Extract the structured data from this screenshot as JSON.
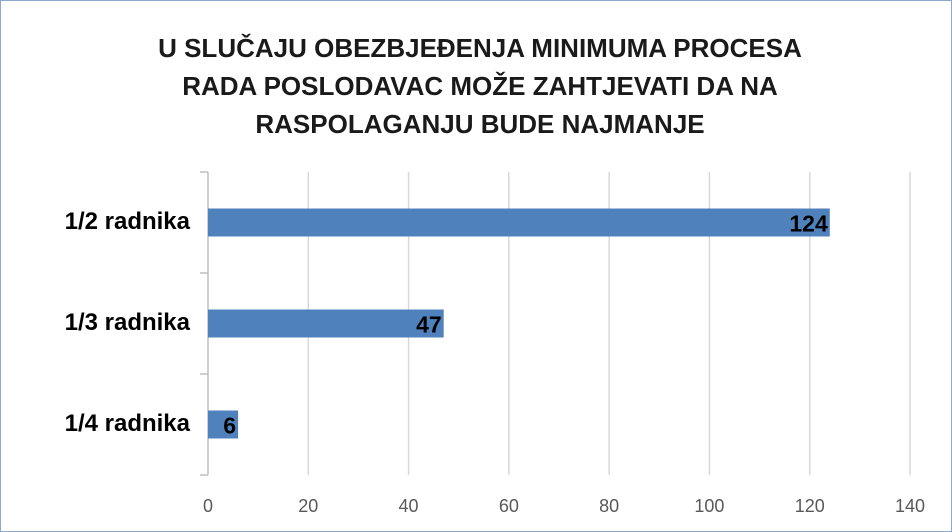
{
  "chart_data": {
    "type": "hbar",
    "title": [
      "U SLUČAJU OBEZBJEĐENJA MINIMUMA PROCESA",
      "RADA POSLODAVAC MOŽE ZAHTJEVATI DA NA",
      "RASPOLAGANJU BUDE NAJMANJE"
    ],
    "categories": [
      "1/2 radnika",
      "1/3 radnika",
      "1/4 radnika"
    ],
    "values": [
      124,
      47,
      6
    ],
    "color": "#4f81bd",
    "xlim": [
      0,
      140
    ],
    "xticks": [
      0,
      20,
      40,
      60,
      80,
      100,
      120,
      140
    ],
    "grid": true
  }
}
